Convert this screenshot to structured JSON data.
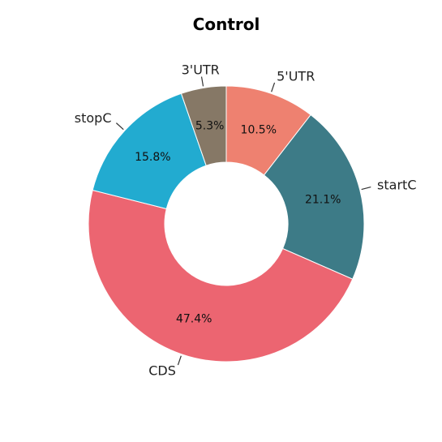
{
  "chart_data": {
    "type": "pie",
    "title": "Control",
    "donut": true,
    "start_angle_deg": 90,
    "direction": "clockwise",
    "slices": [
      {
        "label": "5'UTR",
        "value": 10.5,
        "pct_label": "10.5%",
        "color": "#ee8170"
      },
      {
        "label": "startC",
        "value": 21.1,
        "pct_label": "21.1%",
        "color": "#3d7b87"
      },
      {
        "label": "CDS",
        "value": 47.4,
        "pct_label": "47.4%",
        "color": "#ec6571"
      },
      {
        "label": "stopC",
        "value": 15.8,
        "pct_label": "15.8%",
        "color": "#22abd0"
      },
      {
        "label": "3'UTR",
        "value": 5.3,
        "pct_label": "5.3%",
        "color": "#867866"
      }
    ]
  }
}
